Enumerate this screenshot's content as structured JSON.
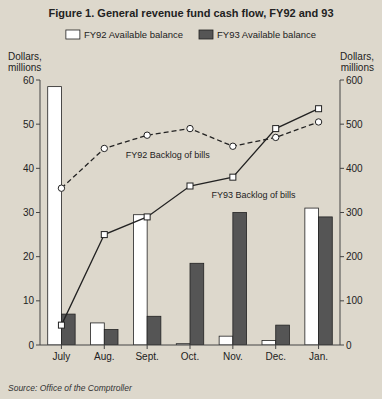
{
  "chart_data": {
    "type": "bar",
    "title": "Figure 1. General revenue fund cash flow, FY92 and 93",
    "source": "Source: Office of the Comptroller",
    "categories": [
      "July",
      "Aug.",
      "Sept.",
      "Oct.",
      "Nov.",
      "Dec.",
      "Jan."
    ],
    "series": [
      {
        "name": "FY92 Available balance",
        "type": "bar",
        "color": "white",
        "values": [
          58.5,
          5.0,
          29.5,
          0.3,
          2.0,
          1.0,
          31.0
        ]
      },
      {
        "name": "FY93 Available balance",
        "type": "bar",
        "color": "#555555",
        "values": [
          7.0,
          3.5,
          6.5,
          18.5,
          30.0,
          4.5,
          29.0
        ]
      },
      {
        "name": "FY92 Backlog of bills",
        "type": "line",
        "axis": "y2",
        "color": "#222222",
        "line_style": "dashed",
        "marker": "circle",
        "values": [
          355,
          445,
          475,
          490,
          450,
          470,
          505
        ]
      },
      {
        "name": "FY93 Backlog of bills",
        "type": "line",
        "axis": "y2",
        "color": "#222222",
        "line_style": "solid",
        "marker": "square",
        "values": [
          45,
          250,
          290,
          360,
          380,
          490,
          535
        ]
      }
    ],
    "ylim": [
      0,
      60
    ],
    "yticks": [
      0,
      10,
      20,
      30,
      40,
      50,
      60
    ],
    "y2lim": [
      0,
      600
    ],
    "y2ticks": [
      0,
      100,
      200,
      300,
      400,
      500,
      600
    ],
    "ylabel": "Dollars,\nmillions",
    "y2label": "Dollars,\nmillions",
    "legend": "top",
    "grid": false
  }
}
